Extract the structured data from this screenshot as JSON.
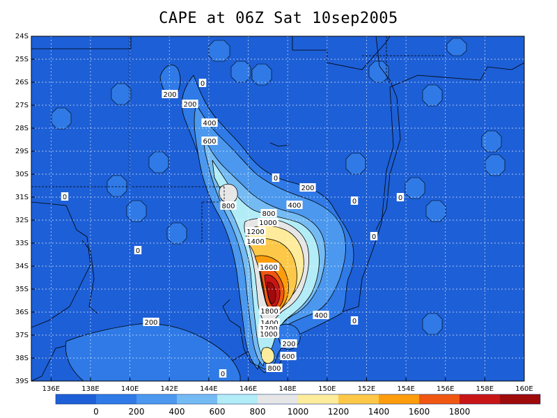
{
  "title": "CAPE at 06Z Sat 10sep2005",
  "lon_ticks": [
    "136E",
    "138E",
    "140E",
    "142E",
    "144E",
    "146E",
    "148E",
    "150E",
    "152E",
    "154E",
    "156E",
    "158E",
    "160E"
  ],
  "lat_ticks": [
    "24S",
    "25S",
    "26S",
    "27S",
    "28S",
    "29S",
    "30S",
    "31S",
    "32S",
    "33S",
    "34S",
    "35S",
    "36S",
    "37S",
    "38S",
    "39S"
  ],
  "colorbar": {
    "colors": [
      "#1d5fd6",
      "#2f7ae6",
      "#4b98ee",
      "#75bbf3",
      "#b2ecf7",
      "#e6e6e6",
      "#feec9c",
      "#fdc848",
      "#fd9c0c",
      "#f05712",
      "#c81616",
      "#9f0a0a"
    ],
    "labels": [
      "0",
      "200",
      "400",
      "600",
      "800",
      "1000",
      "1200",
      "1400",
      "1600",
      "1800"
    ]
  },
  "contour_labels": [
    {
      "text": "0"
    },
    {
      "text": "200"
    },
    {
      "text": "200"
    },
    {
      "text": "400"
    },
    {
      "text": "600"
    },
    {
      "text": "0"
    },
    {
      "text": "200"
    },
    {
      "text": "0"
    },
    {
      "text": "800"
    },
    {
      "text": "400"
    },
    {
      "text": "0"
    },
    {
      "text": "800"
    },
    {
      "text": "1000"
    },
    {
      "text": "1200"
    },
    {
      "text": "0"
    },
    {
      "text": "1400"
    },
    {
      "text": "0"
    },
    {
      "text": "1600"
    },
    {
      "text": "0"
    },
    {
      "text": "1800"
    },
    {
      "text": "400"
    },
    {
      "text": "1400"
    },
    {
      "text": "0"
    },
    {
      "text": "200"
    },
    {
      "text": "1200"
    },
    {
      "text": "1000"
    },
    {
      "text": "200"
    },
    {
      "text": "600"
    },
    {
      "text": "0"
    },
    {
      "text": "800"
    }
  ]
}
